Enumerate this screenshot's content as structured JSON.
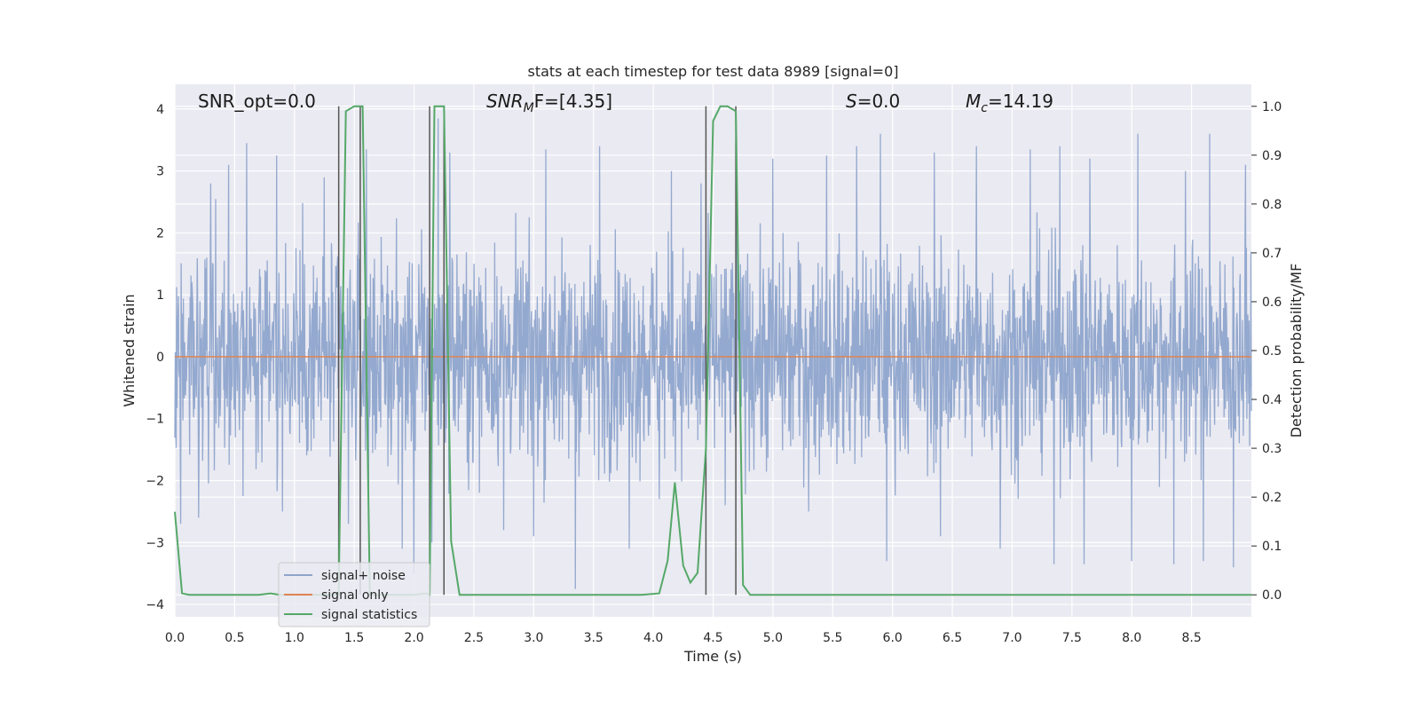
{
  "chart_data": {
    "type": "line",
    "title": "stats at each timestep for test data 8989 [signal=0]",
    "xlabel": "Time (s)",
    "ylabel": "Whitened strain",
    "ylabel_right": "Detection probability/MF",
    "xlim": [
      0,
      9.0
    ],
    "ylim": [
      -4.2,
      4.4
    ],
    "ylim_right": [
      -0.045,
      1.045
    ],
    "xticks": [
      "0.0",
      "0.5",
      "1.0",
      "1.5",
      "2.0",
      "2.5",
      "3.0",
      "3.5",
      "4.0",
      "4.5",
      "5.0",
      "5.5",
      "6.0",
      "6.5",
      "7.0",
      "7.5",
      "8.0",
      "8.5"
    ],
    "yticks": [
      "4",
      "3",
      "2",
      "1",
      "0",
      "−1",
      "−2",
      "−3",
      "−4"
    ],
    "yticks_right": [
      "1.0",
      "0.9",
      "0.8",
      "0.7",
      "0.6",
      "0.5",
      "0.4",
      "0.3",
      "0.2",
      "0.1",
      "0.0"
    ],
    "grid": true,
    "legend_position": "lower-left",
    "annotations": {
      "snr_opt": "SNR_opt=0.0",
      "snr_mf_main": "SNR",
      "snr_mf_sub": "M",
      "snr_mf_rest": "F=[4.35]",
      "s_main": "S",
      "s_rest": "=0.0",
      "mc_main": "M",
      "mc_sub": "c",
      "mc_rest": "=14.19"
    },
    "vertical_lines_x": [
      1.37,
      1.55,
      2.13,
      2.25,
      4.44,
      4.69
    ],
    "series": [
      {
        "name": "signal+ noise",
        "color": "#8fa5cc",
        "axis": "left",
        "note_style": "dense noise trace spanning roughly -3.7 to 3.6",
        "peaks": [
          [
            0.3,
            2.8
          ],
          [
            0.45,
            3.1
          ],
          [
            0.6,
            3.45
          ],
          [
            0.85,
            3.25
          ],
          [
            1.25,
            2.9
          ],
          [
            1.6,
            3.35
          ],
          [
            2.0,
            3.05
          ],
          [
            2.2,
            3.85
          ],
          [
            2.3,
            3.3
          ],
          [
            2.75,
            3.85
          ],
          [
            3.1,
            3.35
          ],
          [
            3.35,
            3.65
          ],
          [
            3.55,
            3.4
          ],
          [
            3.8,
            3.3
          ],
          [
            4.15,
            3.0
          ],
          [
            4.4,
            2.8
          ],
          [
            4.7,
            3.0
          ],
          [
            5.0,
            3.2
          ],
          [
            5.45,
            3.25
          ],
          [
            5.7,
            3.4
          ],
          [
            5.9,
            3.6
          ],
          [
            6.35,
            3.3
          ],
          [
            6.7,
            3.4
          ],
          [
            7.15,
            3.35
          ],
          [
            7.4,
            3.4
          ],
          [
            7.65,
            3.2
          ],
          [
            8.05,
            3.6
          ],
          [
            8.45,
            3.0
          ],
          [
            8.65,
            3.6
          ],
          [
            8.95,
            3.1
          ]
        ],
        "troughs": [
          [
            0.05,
            -2.7
          ],
          [
            0.2,
            -2.6
          ],
          [
            0.9,
            -2.5
          ],
          [
            1.45,
            -2.7
          ],
          [
            1.9,
            -3.1
          ],
          [
            2.0,
            -3.5
          ],
          [
            2.15,
            -3.0
          ],
          [
            2.75,
            -2.8
          ],
          [
            3.0,
            -2.9
          ],
          [
            3.35,
            -3.75
          ],
          [
            3.8,
            -3.1
          ],
          [
            4.05,
            -2.3
          ],
          [
            4.6,
            -2.4
          ],
          [
            5.3,
            -2.5
          ],
          [
            5.95,
            -3.3
          ],
          [
            6.4,
            -2.9
          ],
          [
            6.9,
            -3.1
          ],
          [
            7.35,
            -3.35
          ],
          [
            7.6,
            -3.35
          ],
          [
            8.0,
            -3.3
          ],
          [
            8.35,
            -3.35
          ],
          [
            8.6,
            -3.3
          ],
          [
            8.85,
            -3.4
          ]
        ]
      },
      {
        "name": "signal only",
        "color": "#dd8452",
        "axis": "left",
        "x": [
          0,
          9.0
        ],
        "y": [
          0,
          0
        ]
      },
      {
        "name": "signal statistics",
        "color": "#55a868",
        "axis": "right",
        "x": [
          0,
          0.06,
          0.12,
          0.2,
          0.4,
          0.6,
          0.7,
          0.8,
          0.88,
          1.0,
          1.2,
          1.3,
          1.37,
          1.43,
          1.5,
          1.57,
          1.63,
          1.7,
          1.9,
          2.0,
          2.1,
          2.13,
          2.17,
          2.22,
          2.25,
          2.31,
          2.38,
          2.6,
          3.0,
          3.5,
          3.9,
          4.05,
          4.12,
          4.18,
          4.25,
          4.31,
          4.37,
          4.44,
          4.5,
          4.56,
          4.62,
          4.69,
          4.75,
          4.81,
          5.0,
          6.0,
          7.0,
          8.0,
          9.0
        ],
        "y": [
          0.17,
          0.003,
          0.0,
          0.0,
          0.0,
          0.0,
          0.0,
          0.003,
          0.0,
          0.0,
          0.0,
          0.0,
          0.0,
          0.99,
          1.0,
          1.0,
          0.0,
          0.0,
          0.0,
          0.0,
          0.003,
          0.0,
          1.0,
          1.0,
          1.0,
          0.11,
          0.0,
          0.0,
          0.0,
          0.0,
          0.0,
          0.003,
          0.07,
          0.23,
          0.06,
          0.025,
          0.045,
          0.3,
          0.97,
          1.0,
          1.0,
          0.99,
          0.02,
          0.0,
          0.0,
          0.0,
          0.0,
          0.0,
          0.0
        ]
      }
    ]
  }
}
